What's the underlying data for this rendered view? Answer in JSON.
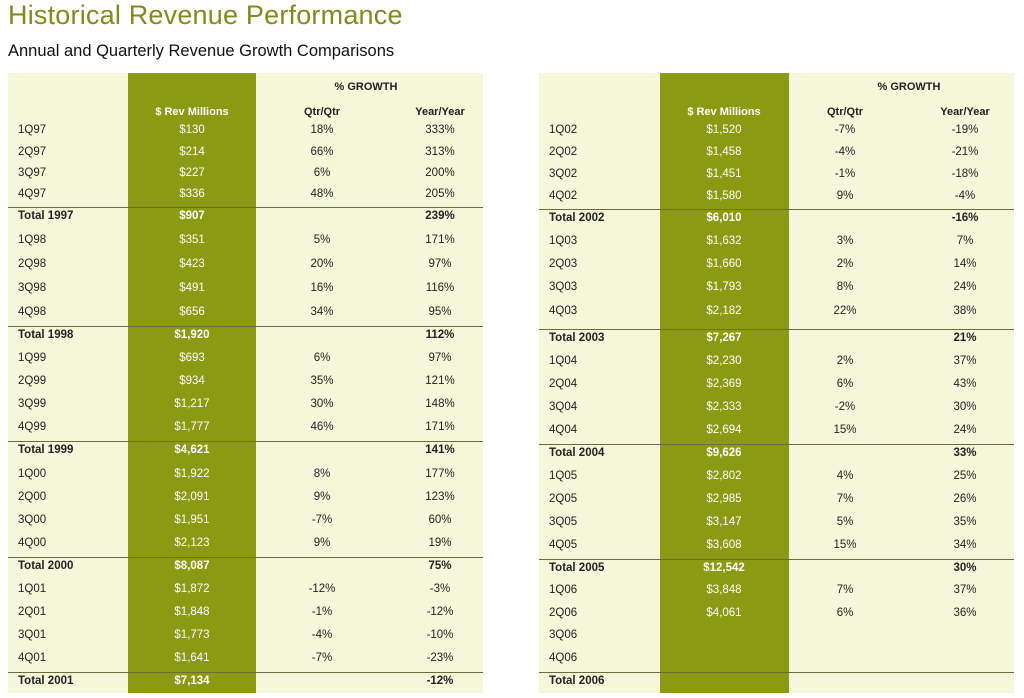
{
  "title": "Historical Revenue Performance",
  "subtitle": "Annual and Quarterly Revenue Growth Comparisons",
  "headers": {
    "growth": "% GROWTH",
    "rev": "$ Rev Millions",
    "qq": "Qtr/Qtr",
    "yy": "Year/Year"
  },
  "colors": {
    "accent": "#8a9a12",
    "panel_bg": "#f5f7da",
    "title": "#7f8c1a"
  },
  "left_table": [
    {
      "label": "1Q97",
      "rev": "$130",
      "qq": "18%",
      "yy": "333%",
      "total": false
    },
    {
      "label": "2Q97",
      "rev": "$214",
      "qq": "66%",
      "yy": "313%",
      "total": false
    },
    {
      "label": "3Q97",
      "rev": "$227",
      "qq": "6%",
      "yy": "200%",
      "total": false
    },
    {
      "label": "4Q97",
      "rev": "$336",
      "qq": "48%",
      "yy": "205%",
      "total": false
    },
    {
      "label": "Total 1997",
      "rev": "$907",
      "qq": "",
      "yy": "239%",
      "total": true
    },
    {
      "label": "1Q98",
      "rev": "$351",
      "qq": "5%",
      "yy": "171%",
      "total": false
    },
    {
      "label": "2Q98",
      "rev": "$423",
      "qq": "20%",
      "yy": "97%",
      "total": false
    },
    {
      "label": "3Q98",
      "rev": "$491",
      "qq": "16%",
      "yy": "116%",
      "total": false
    },
    {
      "label": "4Q98",
      "rev": "$656",
      "qq": "34%",
      "yy": "95%",
      "total": false
    },
    {
      "label": "Total 1998",
      "rev": "$1,920",
      "qq": "",
      "yy": "112%",
      "total": true
    },
    {
      "label": "1Q99",
      "rev": "$693",
      "qq": "6%",
      "yy": "97%",
      "total": false
    },
    {
      "label": "2Q99",
      "rev": "$934",
      "qq": "35%",
      "yy": "121%",
      "total": false
    },
    {
      "label": "3Q99",
      "rev": "$1,217",
      "qq": "30%",
      "yy": "148%",
      "total": false
    },
    {
      "label": "4Q99",
      "rev": "$1,777",
      "qq": "46%",
      "yy": "171%",
      "total": false
    },
    {
      "label": "Total 1999",
      "rev": "$4,621",
      "qq": "",
      "yy": "141%",
      "total": true
    },
    {
      "label": "1Q00",
      "rev": "$1,922",
      "qq": "8%",
      "yy": "177%",
      "total": false
    },
    {
      "label": "2Q00",
      "rev": "$2,091",
      "qq": "9%",
      "yy": "123%",
      "total": false
    },
    {
      "label": "3Q00",
      "rev": "$1,951",
      "qq": "-7%",
      "yy": "60%",
      "total": false
    },
    {
      "label": "4Q00",
      "rev": "$2,123",
      "qq": "9%",
      "yy": "19%",
      "total": false
    },
    {
      "label": "Total 2000",
      "rev": "$8,087",
      "qq": "",
      "yy": "75%",
      "total": true
    },
    {
      "label": "1Q01",
      "rev": "$1,872",
      "qq": "-12%",
      "yy": "-3%",
      "total": false
    },
    {
      "label": "2Q01",
      "rev": "$1,848",
      "qq": "-1%",
      "yy": "-12%",
      "total": false
    },
    {
      "label": "3Q01",
      "rev": "$1,773",
      "qq": "-4%",
      "yy": "-10%",
      "total": false
    },
    {
      "label": "4Q01",
      "rev": "$1,641",
      "qq": "-7%",
      "yy": "-23%",
      "total": false
    },
    {
      "label": "Total 2001",
      "rev": "$7,134",
      "qq": "",
      "yy": "-12%",
      "total": true
    }
  ],
  "right_table": [
    {
      "label": "1Q02",
      "rev": "$1,520",
      "qq": "-7%",
      "yy": "-19%",
      "total": false
    },
    {
      "label": "2Q02",
      "rev": "$1,458",
      "qq": "-4%",
      "yy": "-21%",
      "total": false
    },
    {
      "label": "3Q02",
      "rev": "$1,451",
      "qq": "-1%",
      "yy": "-18%",
      "total": false
    },
    {
      "label": "4Q02",
      "rev": "$1,580",
      "qq": "9%",
      "yy": "-4%",
      "total": false
    },
    {
      "label": "Total 2002",
      "rev": "$6,010",
      "qq": "",
      "yy": "-16%",
      "total": true
    },
    {
      "label": "1Q03",
      "rev": "$1,632",
      "qq": "3%",
      "yy": "7%",
      "total": false
    },
    {
      "label": "2Q03",
      "rev": "$1,660",
      "qq": "2%",
      "yy": "14%",
      "total": false
    },
    {
      "label": "3Q03",
      "rev": "$1,793",
      "qq": "8%",
      "yy": "24%",
      "total": false
    },
    {
      "label": "4Q03",
      "rev": "$2,182",
      "qq": "22%",
      "yy": "38%",
      "total": false
    },
    {
      "label": "Total 2003",
      "rev": "$7,267",
      "qq": "",
      "yy": "21%",
      "total": true
    },
    {
      "label": "1Q04",
      "rev": "$2,230",
      "qq": "2%",
      "yy": "37%",
      "total": false
    },
    {
      "label": "2Q04",
      "rev": "$2,369",
      "qq": "6%",
      "yy": "43%",
      "total": false
    },
    {
      "label": "3Q04",
      "rev": "$2,333",
      "qq": "-2%",
      "yy": "30%",
      "total": false
    },
    {
      "label": "4Q04",
      "rev": "$2,694",
      "qq": "15%",
      "yy": "24%",
      "total": false
    },
    {
      "label": "Total 2004",
      "rev": "$9,626",
      "qq": "",
      "yy": "33%",
      "total": true
    },
    {
      "label": "1Q05",
      "rev": "$2,802",
      "qq": "4%",
      "yy": "25%",
      "total": false
    },
    {
      "label": "2Q05",
      "rev": "$2,985",
      "qq": "7%",
      "yy": "26%",
      "total": false
    },
    {
      "label": "3Q05",
      "rev": "$3,147",
      "qq": "5%",
      "yy": "35%",
      "total": false
    },
    {
      "label": "4Q05",
      "rev": "$3,608",
      "qq": "15%",
      "yy": "34%",
      "total": false
    },
    {
      "label": "Total 2005",
      "rev": "$12,542",
      "qq": "",
      "yy": "30%",
      "total": true
    },
    {
      "label": "1Q06",
      "rev": "$3,848",
      "qq": "7%",
      "yy": "37%",
      "total": false
    },
    {
      "label": "2Q06",
      "rev": "$4,061",
      "qq": "6%",
      "yy": "36%",
      "total": false
    },
    {
      "label": "3Q06",
      "rev": "",
      "qq": "",
      "yy": "",
      "total": false
    },
    {
      "label": "4Q06",
      "rev": "",
      "qq": "",
      "yy": "",
      "total": false
    },
    {
      "label": "Total 2006",
      "rev": "",
      "qq": "",
      "yy": "",
      "total": true
    }
  ]
}
